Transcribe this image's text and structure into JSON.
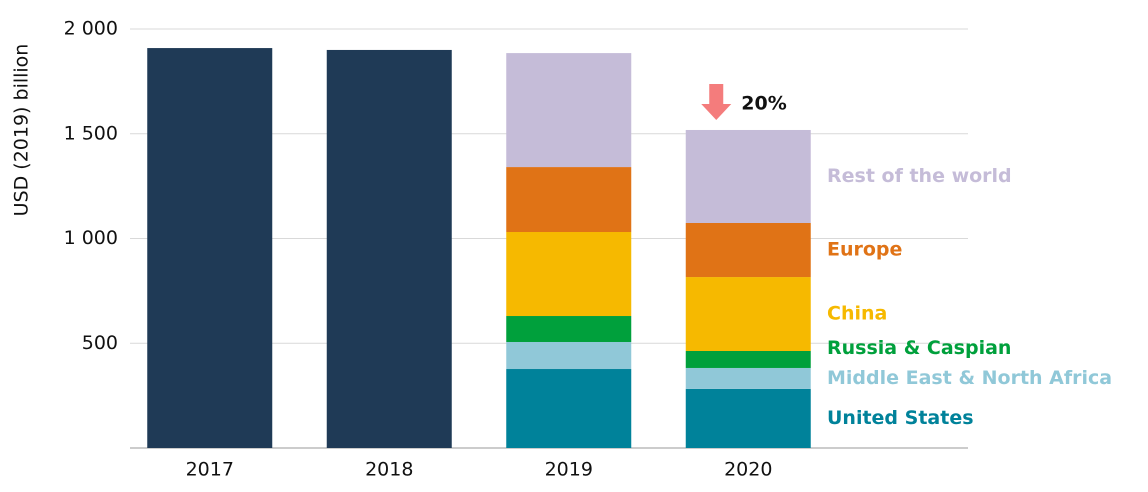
{
  "chart_data": {
    "type": "stacked-bar",
    "y_label": "USD (2019) billion",
    "categories": [
      "2017",
      "2018",
      "2019",
      "2020"
    ],
    "series": [
      {
        "color": "#1f3a56",
        "values": [
          1909,
          1900,
          null,
          null
        ]
      },
      {
        "name": "United States",
        "color": "#00829a",
        "values": [
          null,
          null,
          377,
          282
        ]
      },
      {
        "name": "Middle East & North Africa",
        "color": "#90c8d8",
        "values": [
          null,
          null,
          129,
          100
        ]
      },
      {
        "name": "Russia & Caspian",
        "color": "#00a03c",
        "values": [
          null,
          null,
          124,
          81
        ]
      },
      {
        "name": "China",
        "color": "#f6b900",
        "values": [
          null,
          null,
          401,
          353
        ]
      },
      {
        "name": "Europe",
        "color": "#e07316",
        "values": [
          null,
          null,
          310,
          258
        ]
      },
      {
        "name": "Rest of the world",
        "color": "#c5bcd8",
        "values": [
          null,
          null,
          544,
          444
        ]
      }
    ],
    "annotation": "20%",
    "ylim": [
      0,
      2000
    ],
    "yticks": [
      500,
      {
        "value": 1000,
        "label": "1 000"
      },
      {
        "value": 1500,
        "label": "1 500"
      },
      {
        "value": 2000,
        "label": "2 000"
      }
    ],
    "grid": true
  }
}
